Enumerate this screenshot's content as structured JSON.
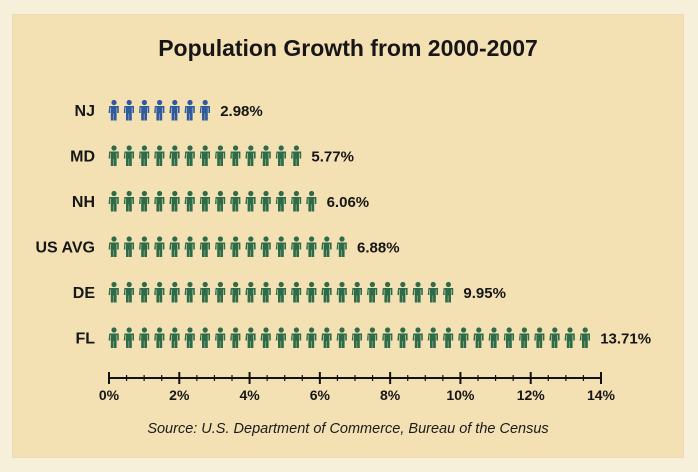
{
  "chart_data": {
    "type": "bar",
    "title": "Population Growth from 2000-2007",
    "categories": [
      "NJ",
      "MD",
      "NH",
      "US AVG",
      "DE",
      "FL"
    ],
    "values": [
      2.98,
      5.77,
      6.06,
      6.88,
      9.95,
      13.71
    ],
    "value_labels": [
      "2.98%",
      "5.77%",
      "6.06%",
      "6.88%",
      "9.95%",
      "13.71%"
    ],
    "bar_colors": [
      "#2f5a9e",
      "#2e6b48",
      "#2e6b48",
      "#2e6b48",
      "#2e6b48",
      "#2e6b48"
    ],
    "icon": "person-icon",
    "xlim": [
      0,
      14
    ],
    "x_ticks": [
      "0%",
      "2%",
      "4%",
      "6%",
      "8%",
      "10%",
      "12%",
      "14%"
    ],
    "grid": false,
    "source": "Source:  U.S. Department of Commerce, Bureau of the Census"
  }
}
